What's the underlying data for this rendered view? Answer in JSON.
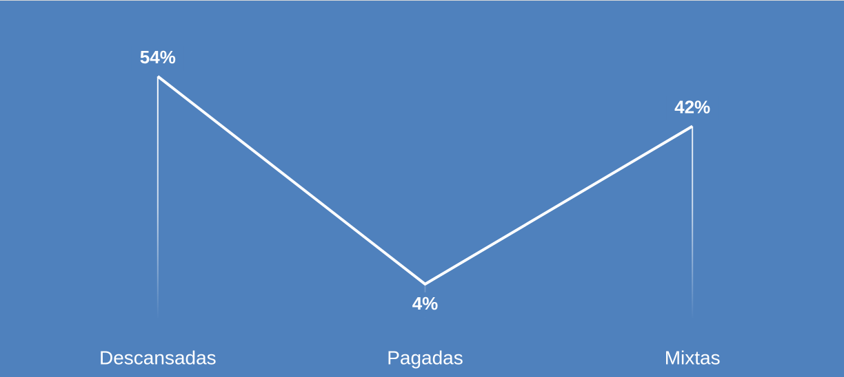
{
  "chart_data": {
    "type": "line",
    "categories": [
      "Descansadas",
      "Pagadas",
      "Mixtas"
    ],
    "values": [
      54,
      4,
      42
    ],
    "value_labels": [
      "54%",
      "4%",
      "42%"
    ],
    "color": "#ffffff"
  }
}
